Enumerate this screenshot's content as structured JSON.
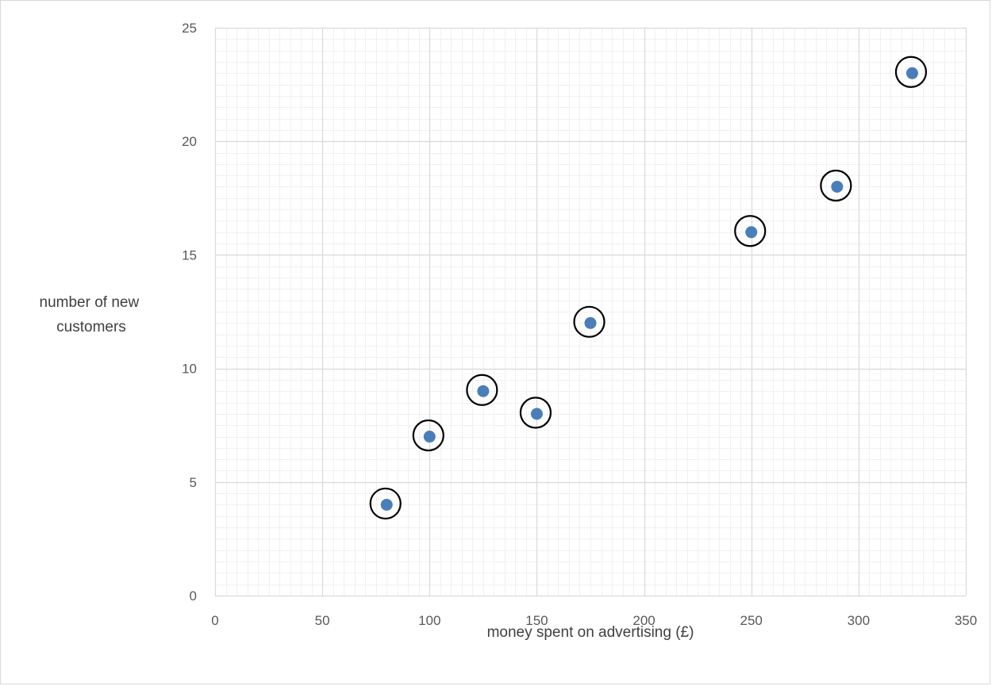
{
  "chart_data": {
    "type": "scatter",
    "title": "",
    "xlabel": "money spent on advertising (£)",
    "ylabel_lines": [
      "number of new",
      "customers"
    ],
    "xlim": [
      0,
      350
    ],
    "ylim": [
      0,
      25
    ],
    "x_major_step": 50,
    "y_major_step": 5,
    "x_minor_step": 5,
    "y_minor_step": 0.5,
    "grid": true,
    "x_ticks": [
      "0",
      "50",
      "100",
      "150",
      "200",
      "250",
      "300",
      "350"
    ],
    "y_ticks": [
      "0",
      "5",
      "10",
      "15",
      "20",
      "25"
    ],
    "points": [
      {
        "x": 80,
        "y": 4
      },
      {
        "x": 100,
        "y": 7
      },
      {
        "x": 125,
        "y": 9
      },
      {
        "x": 150,
        "y": 8
      },
      {
        "x": 175,
        "y": 12
      },
      {
        "x": 250,
        "y": 16
      },
      {
        "x": 290,
        "y": 18
      },
      {
        "x": 325,
        "y": 23
      }
    ],
    "point_color": "#4a7ebb",
    "circle_color": "#000000",
    "major_grid_color": "#d9d9d9",
    "minor_grid_color": "#f0f0f0"
  }
}
